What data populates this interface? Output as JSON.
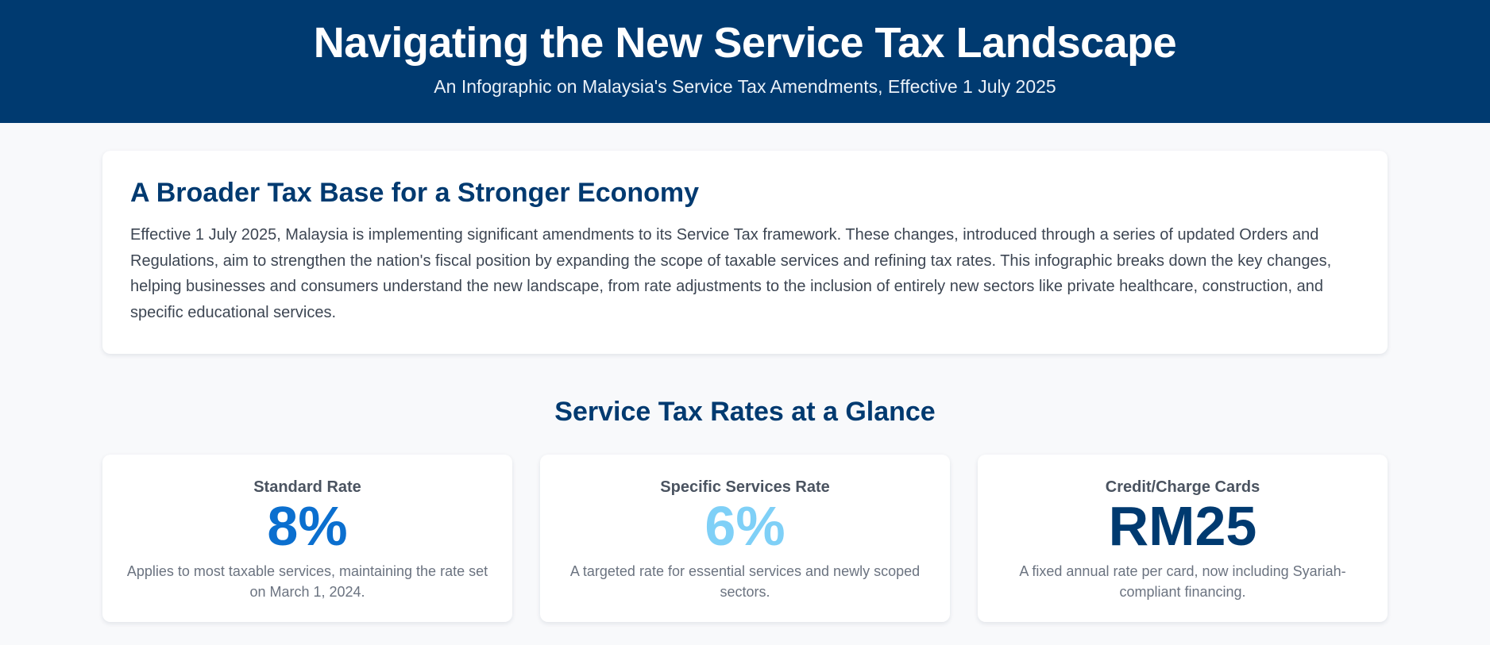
{
  "header": {
    "title": "Navigating the New Service Tax Landscape",
    "subtitle": "An Infographic on Malaysia's Service Tax Amendments, Effective 1 July 2025"
  },
  "intro": {
    "title": "A Broader Tax Base for a Stronger Economy",
    "body": "Effective 1 July 2025, Malaysia is implementing significant amendments to its Service Tax framework. These changes, introduced through a series of updated Orders and Regulations, aim to strengthen the nation's fiscal position by expanding the scope of taxable services and refining tax rates. This infographic breaks down the key changes, helping businesses and consumers understand the new landscape, from rate adjustments to the inclusion of entirely new sectors like private healthcare, construction, and specific educational services."
  },
  "rates_section": {
    "title": "Service Tax Rates at a Glance",
    "cards": [
      {
        "label": "Standard Rate",
        "value": "8%",
        "description": "Applies to most taxable services, maintaining the rate set on March 1, 2024.",
        "color": "#0b6fcf"
      },
      {
        "label": "Specific Services Rate",
        "value": "6%",
        "description": "A targeted rate for essential services and newly scoped sectors.",
        "color": "#7fd0f7"
      },
      {
        "label": "Credit/Charge Cards",
        "value": "RM25",
        "description": "A fixed annual rate per card, now including Syariah-compliant financing.",
        "color": "#003a70"
      }
    ]
  },
  "theme": {
    "header_background": "#003a70",
    "heading_color": "#003a70",
    "page_background": "#f8f9fb"
  }
}
